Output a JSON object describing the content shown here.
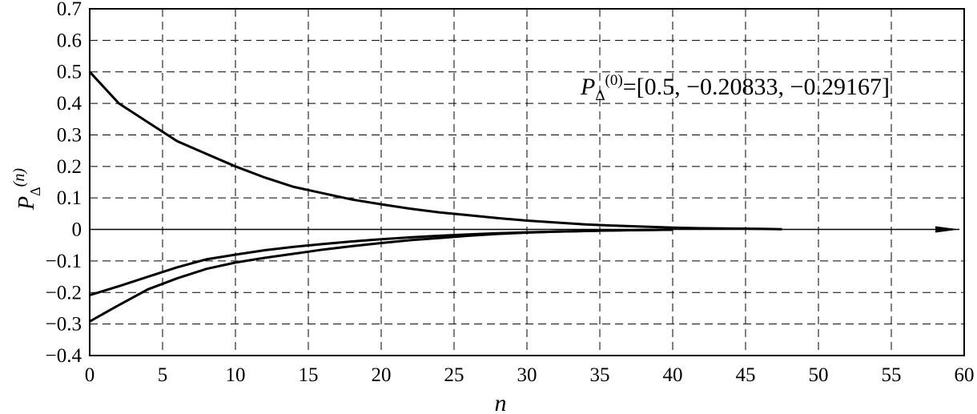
{
  "chart_data": {
    "type": "line",
    "xlabel": "n",
    "ylabel": {
      "main": "P",
      "sub": "Δ",
      "sup": "(n)"
    },
    "xlim": [
      0,
      60
    ],
    "ylim": [
      -0.4,
      0.7
    ],
    "grid": true,
    "x_ticks": [
      0,
      5,
      10,
      15,
      20,
      25,
      30,
      35,
      40,
      45,
      50,
      55,
      60
    ],
    "y_ticks": [
      -0.4,
      -0.3,
      -0.2,
      -0.1,
      0,
      0.1,
      0.2,
      0.3,
      0.4,
      0.5,
      0.6,
      0.7
    ],
    "x_tick_labels": [
      "0",
      "5",
      "10",
      "15",
      "20",
      "25",
      "30",
      "35",
      "40",
      "45",
      "50",
      "55",
      "60"
    ],
    "y_tick_labels": [
      "−0.4",
      "−0.3",
      "−0.2",
      "−0.1",
      "0",
      "0.1",
      "0.2",
      "0.3",
      "0.4",
      "0.5",
      "0.6",
      "0.7"
    ],
    "annotation": {
      "main": "P",
      "sub": "Δ",
      "sup": "(0)",
      "value": "=[0.5, −0.20833, −0.29167]"
    },
    "series": [
      {
        "x": [
          0,
          2,
          4,
          6,
          8,
          10,
          12,
          14,
          16,
          18,
          20,
          22,
          24,
          26,
          28,
          30,
          32,
          34,
          36,
          38,
          40,
          42,
          44,
          46,
          47.5
        ],
        "values": [
          0.5,
          0.4,
          0.34,
          0.28,
          0.24,
          0.2,
          0.165,
          0.135,
          0.115,
          0.095,
          0.08,
          0.066,
          0.054,
          0.045,
          0.036,
          0.028,
          0.022,
          0.016,
          0.012,
          0.009,
          0.006,
          0.004,
          0.003,
          0.002,
          0.001
        ]
      },
      {
        "x": [
          0,
          2,
          4,
          6,
          8,
          10,
          12,
          14,
          16,
          18,
          20,
          22,
          24,
          26,
          28,
          30,
          32,
          34,
          36,
          38,
          40
        ],
        "values": [
          -0.20833,
          -0.18,
          -0.15,
          -0.12,
          -0.095,
          -0.08,
          -0.066,
          -0.055,
          -0.046,
          -0.038,
          -0.031,
          -0.025,
          -0.02,
          -0.016,
          -0.012,
          -0.009,
          -0.007,
          -0.005,
          -0.003,
          -0.002,
          -0.001
        ]
      },
      {
        "x": [
          0,
          2,
          4,
          6,
          8,
          10,
          12,
          14,
          16,
          18,
          20,
          22,
          24,
          26,
          28,
          30,
          32,
          34,
          36,
          38,
          40
        ],
        "values": [
          -0.29167,
          -0.24,
          -0.19,
          -0.155,
          -0.125,
          -0.105,
          -0.09,
          -0.077,
          -0.064,
          -0.053,
          -0.043,
          -0.034,
          -0.027,
          -0.02,
          -0.014,
          -0.01,
          -0.007,
          -0.005,
          -0.003,
          -0.002,
          -0.001
        ]
      }
    ]
  }
}
